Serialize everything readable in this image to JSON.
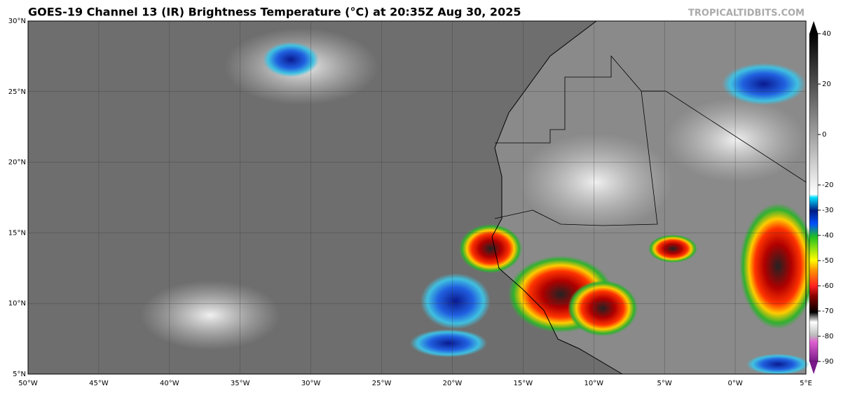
{
  "header": {
    "title": "GOES-19 Channel 13 (IR) Brightness Temperature (°C) at 20:35Z Aug 30, 2025",
    "source": "TROPICALTIDBITS.COM"
  },
  "map": {
    "lat_ticks": [
      {
        "value": 30,
        "label": "30°N"
      },
      {
        "value": 25,
        "label": "25°N"
      },
      {
        "value": 20,
        "label": "20°N"
      },
      {
        "value": 15,
        "label": "15°N"
      },
      {
        "value": 10,
        "label": "10°N"
      },
      {
        "value": 5,
        "label": "5°N"
      }
    ],
    "lon_ticks": [
      {
        "value": -50,
        "label": "50°W"
      },
      {
        "value": -45,
        "label": "45°W"
      },
      {
        "value": -40,
        "label": "40°W"
      },
      {
        "value": -35,
        "label": "35°W"
      },
      {
        "value": -30,
        "label": "30°W"
      },
      {
        "value": -25,
        "label": "25°W"
      },
      {
        "value": -20,
        "label": "20°W"
      },
      {
        "value": -15,
        "label": "15°W"
      },
      {
        "value": -10,
        "label": "10°W"
      },
      {
        "value": -5,
        "label": "5°W"
      },
      {
        "value": 0,
        "label": "0°W"
      },
      {
        "value": 5,
        "label": "5°E"
      }
    ]
  },
  "colorbar": {
    "ticks": [
      40,
      20,
      0,
      -20,
      -30,
      -40,
      -50,
      -60,
      -70,
      -80,
      -90
    ]
  }
}
